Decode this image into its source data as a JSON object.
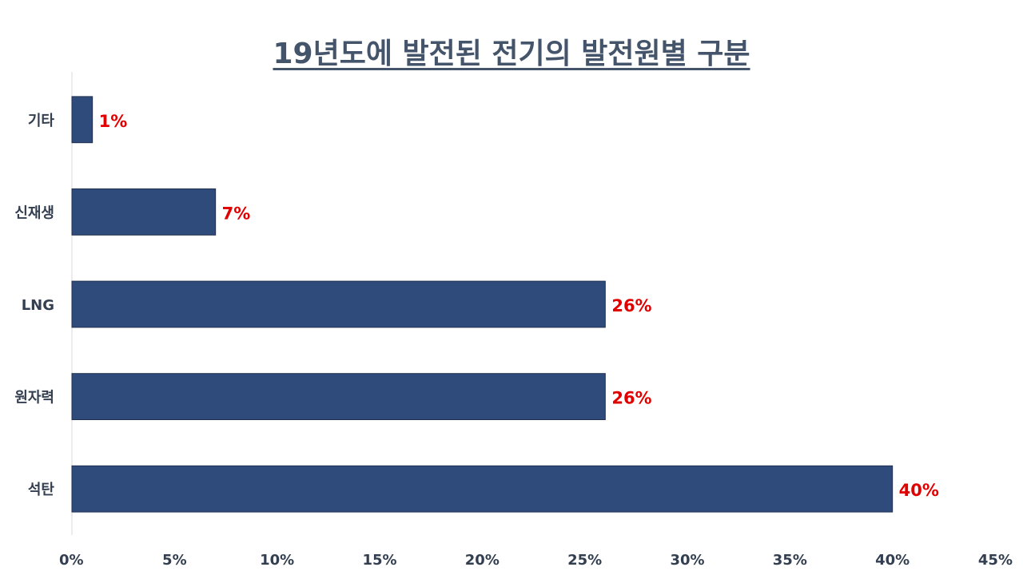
{
  "chart_data": {
    "type": "bar",
    "orientation": "horizontal",
    "title": "19년도에 발전된 전기의 발전원별 구분",
    "categories": [
      "기타",
      "신재생",
      "LNG",
      "원자력",
      "석탄"
    ],
    "values": [
      1,
      7,
      26,
      26,
      40
    ],
    "data_labels": [
      "1%",
      "7%",
      "26%",
      "26%",
      "40%"
    ],
    "xlim": [
      0,
      45
    ],
    "x_ticks": [
      0,
      5,
      10,
      15,
      20,
      25,
      30,
      35,
      40,
      45
    ],
    "x_tick_labels": [
      "0%",
      "5%",
      "10%",
      "15%",
      "20%",
      "25%",
      "30%",
      "35%",
      "40%",
      "45%"
    ],
    "grid": false,
    "legend": "none",
    "colors": {
      "bar": "#2f4b7c",
      "bar_edge": "#1e2f4f",
      "data_label": "#e00000",
      "title": "#44546a",
      "axis_text": "#333f50"
    }
  }
}
